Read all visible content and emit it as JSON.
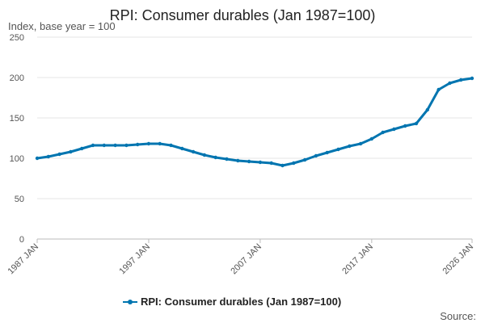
{
  "chart_data": {
    "type": "line",
    "title": "RPI: Consumer durables (Jan 1987=100)",
    "ylabel": "Index, base year = 100",
    "xlabel": "",
    "ylim": [
      0,
      250
    ],
    "yticks": [
      0,
      50,
      100,
      150,
      200,
      250
    ],
    "xlim": [
      1987,
      2026
    ],
    "xticks": [
      {
        "year": 1987,
        "label": "1987 JAN"
      },
      {
        "year": 1997,
        "label": "1997 JAN"
      },
      {
        "year": 2007,
        "label": "2007 JAN"
      },
      {
        "year": 2017,
        "label": "2017 JAN"
      },
      {
        "year": 2026,
        "label": "2026 JAN"
      }
    ],
    "legend_position": "bottom-center",
    "source_label": "Source:",
    "color": "#0075b0",
    "series": [
      {
        "name": "RPI: Consumer durables (Jan 1987=100)",
        "x": [
          1987,
          1988,
          1989,
          1990,
          1991,
          1992,
          1993,
          1994,
          1995,
          1996,
          1997,
          1998,
          1999,
          2000,
          2001,
          2002,
          2003,
          2004,
          2005,
          2006,
          2007,
          2008,
          2009,
          2010,
          2011,
          2012,
          2013,
          2014,
          2015,
          2016,
          2017,
          2018,
          2019,
          2020,
          2021,
          2022,
          2023,
          2024,
          2025,
          2026
        ],
        "values": [
          100,
          102,
          105,
          108,
          112,
          116,
          116,
          116,
          116,
          117,
          118,
          118,
          116,
          112,
          108,
          104,
          101,
          99,
          97,
          96,
          95,
          94,
          91,
          94,
          98,
          103,
          107,
          111,
          115,
          118,
          124,
          132,
          136,
          140,
          143,
          160,
          185,
          193,
          197,
          199
        ]
      }
    ]
  }
}
